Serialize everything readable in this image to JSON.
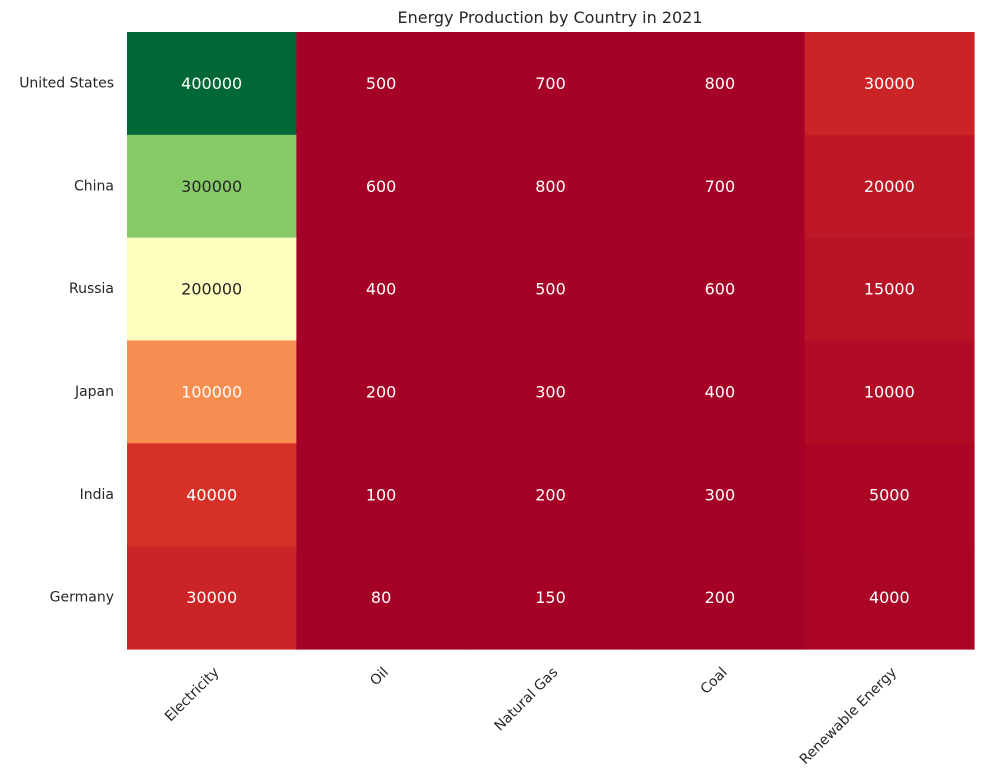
{
  "chart_data": {
    "type": "heatmap",
    "title": "Energy Production by Country in 2021",
    "xlabel": "",
    "ylabel": "",
    "columns": [
      "Electricity",
      "Oil",
      "Natural Gas",
      "Coal",
      "Renewable Energy"
    ],
    "rows": [
      "United States",
      "China",
      "Russia",
      "Japan",
      "India",
      "Germany"
    ],
    "values": [
      [
        400000,
        500,
        700,
        800,
        30000
      ],
      [
        300000,
        600,
        800,
        700,
        20000
      ],
      [
        200000,
        400,
        500,
        600,
        15000
      ],
      [
        100000,
        200,
        300,
        400,
        10000
      ],
      [
        40000,
        100,
        200,
        300,
        5000
      ],
      [
        30000,
        80,
        150,
        200,
        4000
      ]
    ],
    "colormap": "RdYlGn",
    "value_range": [
      80,
      400000
    ],
    "colorbar": false,
    "grid": false,
    "annotated": true
  }
}
